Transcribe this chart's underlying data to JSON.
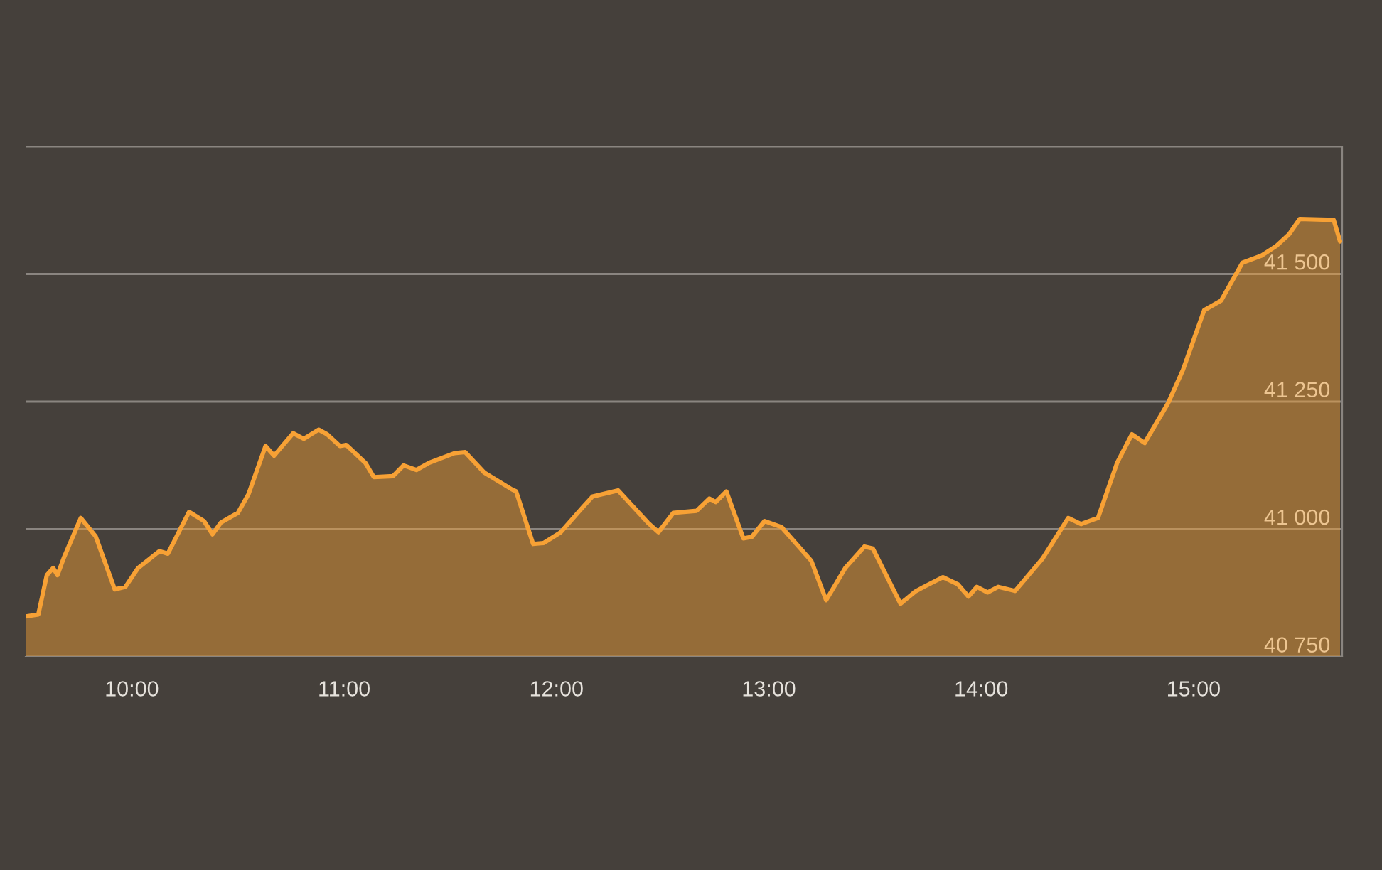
{
  "chart_data": {
    "type": "area",
    "x": [
      9.5,
      9.56,
      9.6,
      9.63,
      9.65,
      9.68,
      9.76,
      9.83,
      9.92,
      9.97,
      10.03,
      10.13,
      10.17,
      10.27,
      10.34,
      10.38,
      10.42,
      10.5,
      10.55,
      10.63,
      10.67,
      10.76,
      10.81,
      10.88,
      10.92,
      10.98,
      11.01,
      11.1,
      11.14,
      11.23,
      11.28,
      11.34,
      11.4,
      11.52,
      11.57,
      11.66,
      11.79,
      11.81,
      11.89,
      11.94,
      12.02,
      12.13,
      12.17,
      12.29,
      12.43,
      12.48,
      12.55,
      12.66,
      12.72,
      12.75,
      12.8,
      12.88,
      12.92,
      12.98,
      13.06,
      13.2,
      13.27,
      13.36,
      13.45,
      13.49,
      13.62,
      13.69,
      13.73,
      13.82,
      13.89,
      13.94,
      13.98,
      14.03,
      14.08,
      14.16,
      14.29,
      14.41,
      14.47,
      14.55,
      14.64,
      14.71,
      14.77,
      14.88,
      14.95,
      15.05,
      15.13,
      15.23,
      15.32,
      15.39,
      15.45,
      15.5,
      15.66,
      15.69
    ],
    "series": [
      {
        "color": "#f7a135",
        "values": [
          40829,
          40833,
          40910,
          40924,
          40910,
          40944,
          41022,
          40986,
          40882,
          40887,
          40924,
          40957,
          40952,
          41034,
          41016,
          40990,
          41013,
          41032,
          41069,
          41163,
          41144,
          41188,
          41177,
          41195,
          41186,
          41163,
          41165,
          41130,
          41102,
          41104,
          41125,
          41116,
          41130,
          41149,
          41151,
          41111,
          41078,
          41074,
          40971,
          40973,
          40994,
          41046,
          41064,
          41076,
          41013,
          40994,
          41032,
          41036,
          41060,
          41053,
          41074,
          40982,
          40985,
          41016,
          41004,
          40938,
          40861,
          40924,
          40966,
          40962,
          40854,
          40878,
          40887,
          40906,
          40892,
          40868,
          40887,
          40876,
          40887,
          40879,
          40943,
          41022,
          41010,
          41022,
          41130,
          41186,
          41169,
          41247,
          41312,
          41429,
          41448,
          41522,
          41536,
          41555,
          41578,
          41608,
          41606,
          41564
        ]
      }
    ],
    "xlim": [
      9.5,
      15.7
    ],
    "xticks": [
      {
        "value": 10,
        "label": "10:00"
      },
      {
        "value": 11,
        "label": "11:00"
      },
      {
        "value": 12,
        "label": "12:00"
      },
      {
        "value": 13,
        "label": "13:00"
      },
      {
        "value": 14,
        "label": "14:00"
      },
      {
        "value": 15,
        "label": "15:00"
      }
    ],
    "ylim": [
      40750,
      41750
    ],
    "yticks": [
      {
        "value": 40750,
        "label": "40 750"
      },
      {
        "value": 41000,
        "label": "41 000"
      },
      {
        "value": 41250,
        "label": "41 250"
      },
      {
        "value": 41500,
        "label": "41 500"
      },
      {
        "value": 41750,
        "label": null
      }
    ],
    "grid": "y",
    "legend": false,
    "marker": "none",
    "line_style": "solid"
  }
}
